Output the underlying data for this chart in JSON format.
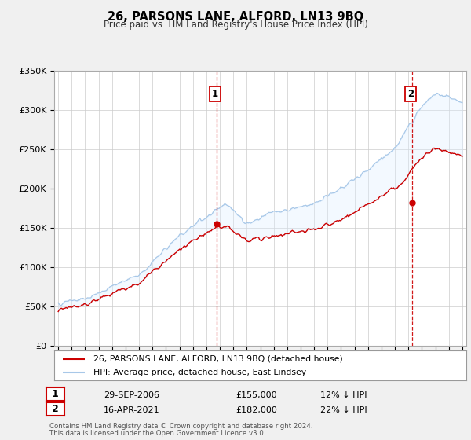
{
  "title": "26, PARSONS LANE, ALFORD, LN13 9BQ",
  "subtitle": "Price paid vs. HM Land Registry's House Price Index (HPI)",
  "legend_line1": "26, PARSONS LANE, ALFORD, LN13 9BQ (detached house)",
  "legend_line2": "HPI: Average price, detached house, East Lindsey",
  "purchase1_date": "29-SEP-2006",
  "purchase1_price": "£155,000",
  "purchase1_hpi": "12% ↓ HPI",
  "purchase1_year": 2006.75,
  "purchase1_value": 155000,
  "purchase2_date": "16-APR-2021",
  "purchase2_price": "£182,000",
  "purchase2_hpi": "22% ↓ HPI",
  "purchase2_year": 2021.29,
  "purchase2_value": 182000,
  "hpi_color": "#a8c8e8",
  "price_color": "#cc0000",
  "vline_color": "#cc0000",
  "fill_color": "#ddeeff",
  "bg_color": "#f0f0f0",
  "plot_bg": "#ffffff",
  "grid_color": "#cccccc",
  "footnote1": "Contains HM Land Registry data © Crown copyright and database right 2024.",
  "footnote2": "This data is licensed under the Open Government Licence v3.0.",
  "ylim_max": 350000,
  "ylim_min": 0
}
